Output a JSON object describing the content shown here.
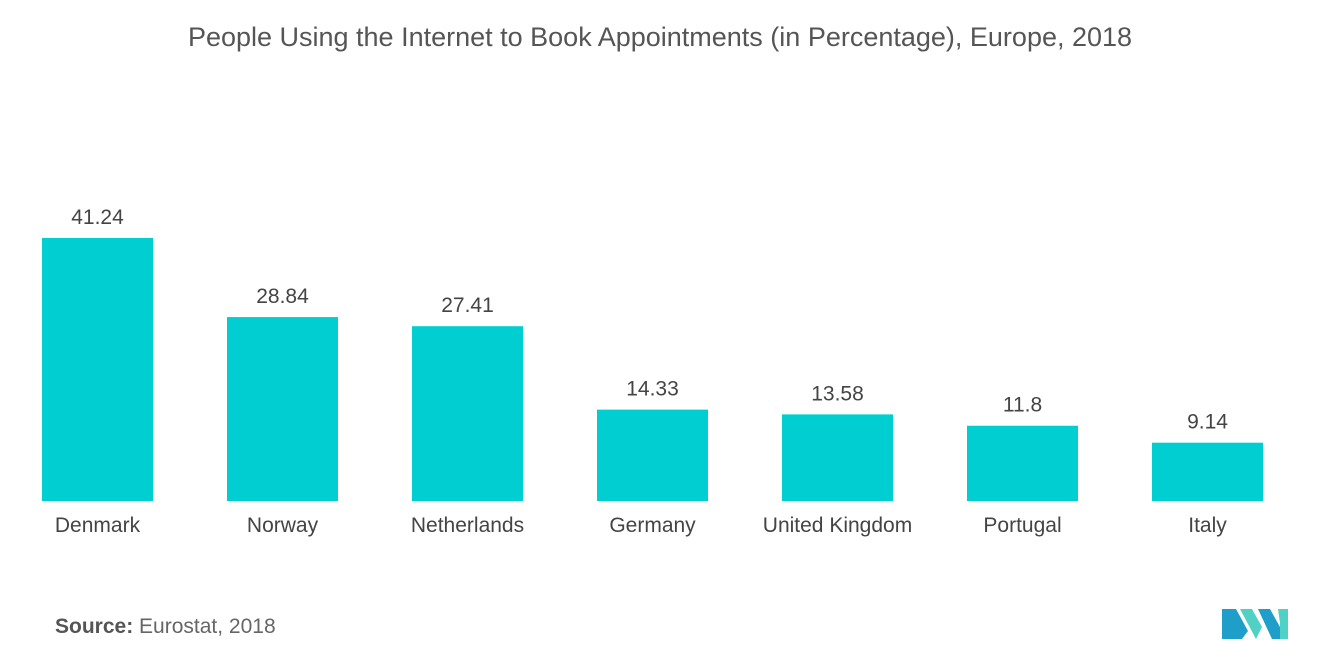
{
  "chart_data": {
    "type": "bar",
    "title": "People Using the Internet to Book Appointments (in Percentage), Europe, 2018",
    "categories": [
      "Denmark",
      "Norway",
      "Netherlands",
      "Germany",
      "United Kingdom",
      "Portugal",
      "Italy"
    ],
    "values": [
      41.24,
      28.84,
      27.41,
      14.33,
      13.58,
      11.8,
      9.14
    ],
    "value_labels": [
      "41.24",
      "28.84",
      "27.41",
      "14.33",
      "13.58",
      "11.8",
      "9.14"
    ],
    "xlabel": "",
    "ylabel": "",
    "ylim": [
      0,
      41.24
    ],
    "grid": false,
    "bar_color": "#00CED1"
  },
  "source": {
    "label": "Source:",
    "text": "Eurostat, 2018"
  },
  "logo": {
    "icon": "mordor-intelligence-logo-icon",
    "colors": [
      "#1F9EC9",
      "#4FD1C5"
    ]
  }
}
